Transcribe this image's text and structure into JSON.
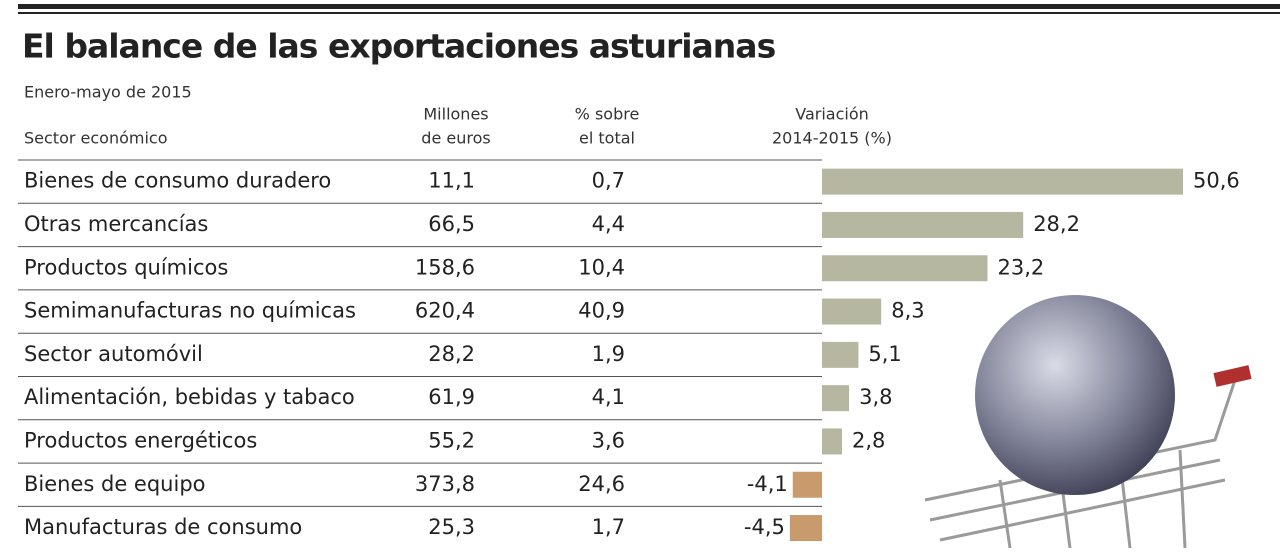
{
  "title": "El balance de las exportaciones asturianas",
  "subtitle": "Enero-mayo de 2015",
  "table": {
    "headers": [
      [
        "Sector económico"
      ],
      [
        "Millones",
        "de euros"
      ],
      [
        "% sobre",
        "el total"
      ],
      [
        "Variación",
        "2014-2015 (%)"
      ]
    ],
    "rows": [
      [
        "Bienes de consumo duradero",
        "11,1",
        "0,7"
      ],
      [
        "Otras mercancías",
        "66,5",
        "4,4"
      ],
      [
        "Productos químicos",
        "158,6",
        "10,4"
      ],
      [
        "Semimanufacturas no químicas",
        "620,4",
        "40,9"
      ],
      [
        "Sector automóvil",
        "28,2",
        "1,9"
      ],
      [
        "Alimentación, bebidas y tabaco",
        "61,9",
        "4,1"
      ],
      [
        "Productos energéticos",
        "55,2",
        "3,6"
      ],
      [
        "Bienes de equipo",
        "373,8",
        "24,6"
      ],
      [
        "Manufacturas de consumo",
        "25,3",
        "1,7"
      ]
    ]
  },
  "chart_data": {
    "type": "bar",
    "orientation": "horizontal",
    "values": [
      50.6,
      28.2,
      23.2,
      8.3,
      5.1,
      3.8,
      2.8,
      -4.1,
      -4.5
    ],
    "value_labels": [
      "50,6",
      "28,2",
      "23,2",
      "8,3",
      "5,1",
      "3,8",
      "2,8",
      "-4,1",
      "-4,5"
    ],
    "colors": {
      "positive": "#b5b7a1",
      "negative": "#c99a6c"
    }
  }
}
